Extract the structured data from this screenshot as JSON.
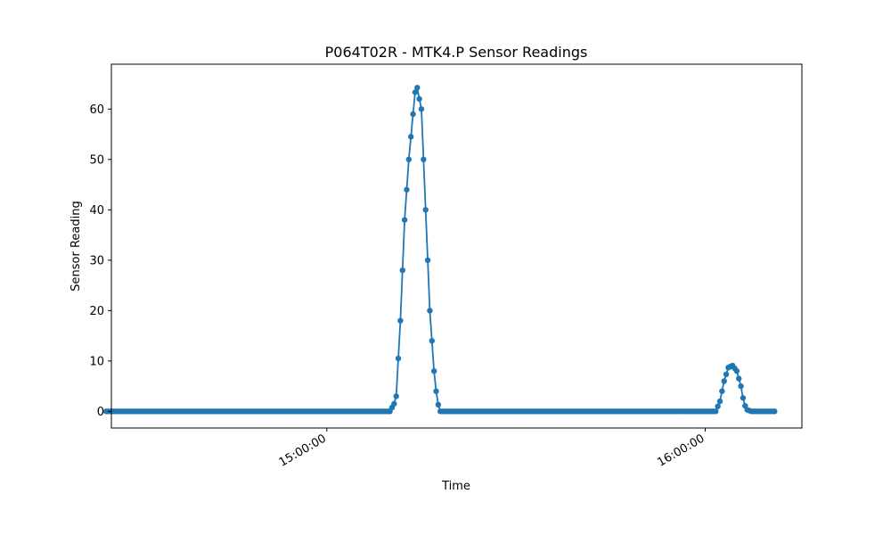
{
  "chart_data": {
    "type": "line",
    "title": "P064T02R - MTK4.P Sensor Readings",
    "xlabel": "Time",
    "ylabel": "Sensor Reading",
    "x_axis_type": "time",
    "xlim": [
      "14:25:50",
      "16:15:20"
    ],
    "ylim": [
      -3.3,
      68.9
    ],
    "x_ticks": [
      "15:00:00",
      "16:00:00"
    ],
    "y_ticks": [
      0,
      10,
      20,
      30,
      40,
      50,
      60
    ],
    "grid": false,
    "marker": "circle",
    "series_color": "#1f77b4",
    "sample_interval_seconds": 20,
    "x_start": "14:25:00",
    "x_end": "16:11:00",
    "keypoints": [
      [
        "14:25:00",
        0
      ],
      [
        "15:10:00",
        0
      ],
      [
        "15:10:40",
        1.5
      ],
      [
        "15:11:00",
        3
      ],
      [
        "15:11:40",
        18
      ],
      [
        "15:12:20",
        38
      ],
      [
        "15:13:00",
        50
      ],
      [
        "15:13:40",
        59
      ],
      [
        "15:14:10",
        65.5
      ],
      [
        "15:14:30",
        63
      ],
      [
        "15:15:00",
        60
      ],
      [
        "15:15:40",
        40
      ],
      [
        "15:16:20",
        20
      ],
      [
        "15:17:00",
        8
      ],
      [
        "15:17:30",
        2
      ],
      [
        "15:18:00",
        0
      ],
      [
        "16:01:40",
        0
      ],
      [
        "16:02:20",
        2
      ],
      [
        "16:03:00",
        6
      ],
      [
        "16:03:40",
        8.7
      ],
      [
        "16:04:20",
        9.1
      ],
      [
        "16:05:00",
        8
      ],
      [
        "16:05:40",
        5
      ],
      [
        "16:06:10",
        1.5
      ],
      [
        "16:06:40",
        0.3
      ],
      [
        "16:07:20",
        0
      ],
      [
        "16:11:00",
        0
      ]
    ]
  }
}
